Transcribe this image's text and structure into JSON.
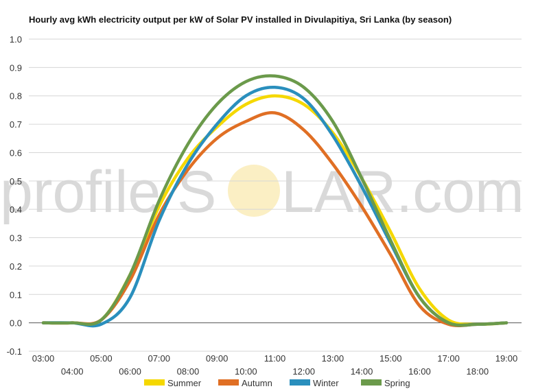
{
  "chart_data": {
    "type": "line",
    "title": "Hourly avg kWh electricity output per kW of Solar PV installed in Divulapitiya, Sri Lanka (by season)",
    "xlabel": "",
    "ylabel": "",
    "ylim": [
      -0.1,
      1.0
    ],
    "yticks": [
      "-0.1",
      "0.0",
      "0.1",
      "0.2",
      "0.3",
      "0.4",
      "0.5",
      "0.6",
      "0.7",
      "0.8",
      "0.9",
      "1.0"
    ],
    "x": [
      "03:00",
      "04:00",
      "05:00",
      "06:00",
      "07:00",
      "08:00",
      "09:00",
      "10:00",
      "11:00",
      "12:00",
      "13:00",
      "14:00",
      "15:00",
      "16:00",
      "17:00",
      "18:00",
      "19:00"
    ],
    "grid": true,
    "legend_position": "bottom",
    "series": [
      {
        "name": "Summer",
        "color": "#f5d800",
        "values": [
          0.0,
          0.0,
          0.01,
          0.17,
          0.41,
          0.58,
          0.69,
          0.77,
          0.8,
          0.77,
          0.67,
          0.51,
          0.32,
          0.12,
          0.01,
          -0.005,
          0.0
        ]
      },
      {
        "name": "Autumn",
        "color": "#e06f24",
        "values": [
          0.0,
          0.0,
          0.01,
          0.15,
          0.38,
          0.54,
          0.65,
          0.71,
          0.74,
          0.68,
          0.56,
          0.41,
          0.24,
          0.06,
          -0.005,
          -0.005,
          0.0
        ]
      },
      {
        "name": "Winter",
        "color": "#2a8fbd",
        "values": [
          0.0,
          0.0,
          -0.005,
          0.09,
          0.36,
          0.56,
          0.7,
          0.8,
          0.83,
          0.79,
          0.66,
          0.48,
          0.28,
          0.09,
          0.0,
          -0.005,
          0.0
        ]
      },
      {
        "name": "Spring",
        "color": "#6b9a4b",
        "values": [
          0.0,
          0.0,
          0.01,
          0.17,
          0.43,
          0.63,
          0.77,
          0.85,
          0.87,
          0.83,
          0.71,
          0.51,
          0.29,
          0.09,
          0.0,
          -0.005,
          0.0
        ]
      }
    ]
  },
  "watermark": {
    "text_left": "profile",
    "text_mid": "S",
    "text_right": "LAR.com",
    "sun_color": "#fbefc4"
  }
}
